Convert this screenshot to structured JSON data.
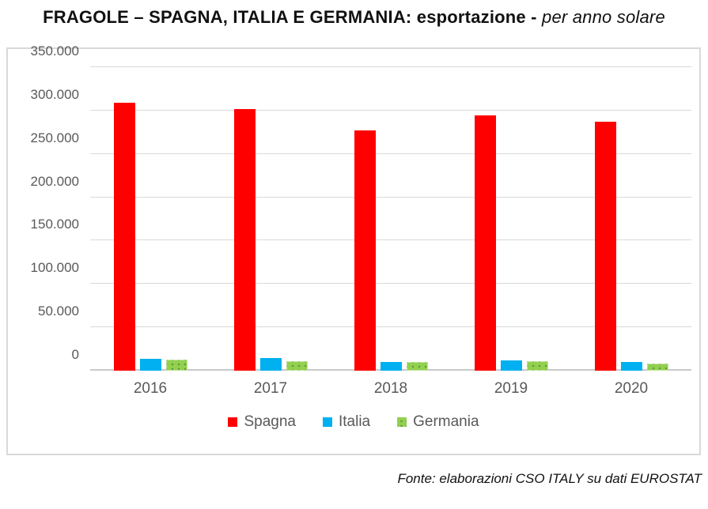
{
  "title": {
    "main": "FRAGOLE – SPAGNA, ITALIA E GERMANIA: esportazione - ",
    "suffix": "per anno solare"
  },
  "source": "Fonte: elaborazioni CSO ITALY su dati EUROSTAT",
  "colors": {
    "spagna": "#FF0000",
    "italia": "#00B0F0",
    "germania": "#92D050",
    "germania_dots": "#619A33",
    "gridline": "#D9D9D9",
    "axis_text": "#595959",
    "frame_border": "#D9D9D9"
  },
  "chart_data": {
    "type": "bar",
    "title": "FRAGOLE – SPAGNA, ITALIA E GERMANIA: esportazione - per anno solare",
    "categories": [
      "2016",
      "2017",
      "2018",
      "2019",
      "2020"
    ],
    "series": [
      {
        "name": "Spagna",
        "color_key": "spagna",
        "pattern": "solid",
        "values": [
          309000,
          302000,
          277000,
          294000,
          287000
        ]
      },
      {
        "name": "Italia",
        "color_key": "italia",
        "pattern": "solid",
        "values": [
          14000,
          15000,
          10000,
          12000,
          10000
        ]
      },
      {
        "name": "Germania",
        "color_key": "germania",
        "pattern": "dots",
        "values": [
          13000,
          11000,
          10000,
          11000,
          8000
        ]
      }
    ],
    "xlabel": "",
    "ylabel": "",
    "ylim": [
      0,
      350000
    ],
    "y_ticks": [
      {
        "label": "0",
        "value": 0
      },
      {
        "label": "50.000",
        "value": 50000
      },
      {
        "label": "100.000",
        "value": 100000
      },
      {
        "label": "150.000",
        "value": 150000
      },
      {
        "label": "200.000",
        "value": 200000
      },
      {
        "label": "250.000",
        "value": 250000
      },
      {
        "label": "300.000",
        "value": 300000
      },
      {
        "label": "350.000",
        "value": 350000
      }
    ],
    "grid": true,
    "legend_position": "bottom"
  }
}
